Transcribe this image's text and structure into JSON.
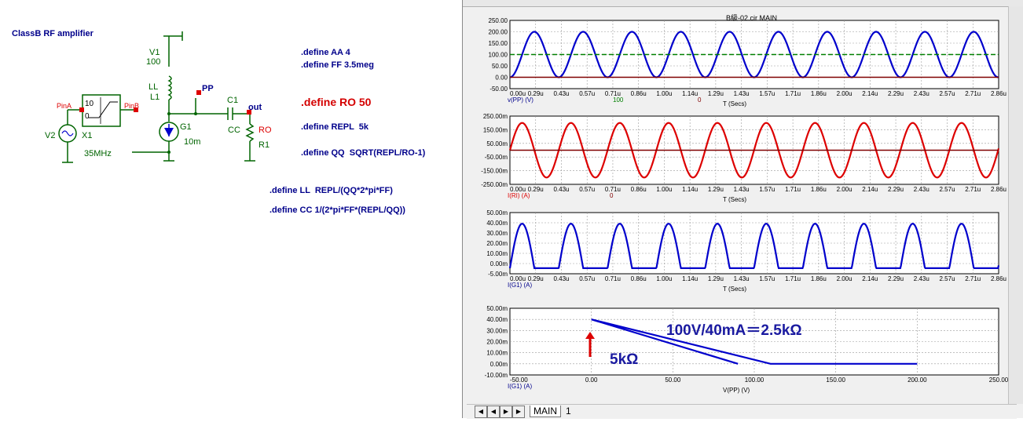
{
  "schematic": {
    "title": "ClassB  RF amplifier",
    "labels": {
      "v1": "V1",
      "v1_value": "100",
      "ll": "LL",
      "l1": "L1",
      "pp": "PP",
      "c1": "C1",
      "cc": "CC",
      "out": "out",
      "ro": "RO",
      "r1": "R1",
      "g1": "G1",
      "g1_value": "10m",
      "pina": "PinA",
      "pinb": "PinB",
      "x1": "X1",
      "v2": "V2",
      "freq": "35MHz",
      "x1_box_top": "10",
      "x1_box_bot": "0"
    },
    "defines": [
      ".define AA 4",
      ".define FF 3.5meg",
      ".define RO 50",
      ".define REPL  5k",
      ".define QQ  SQRT(REPL/RO-1)",
      ".define LL  REPL/(QQ*2*pi*FF)",
      ".define CC 1/(2*pi*FF*(REPL/QQ))"
    ]
  },
  "plot_window": {
    "title": "B級-02.cir MAIN",
    "tabs": [
      "MAIN",
      "1"
    ]
  },
  "colors": {
    "blue": "#0000cc",
    "red": "#dd0000",
    "darkred": "#800000",
    "green": "#008000",
    "navy": "#00008b"
  },
  "chart_data": [
    {
      "type": "line",
      "title": "B級-02.cir MAIN",
      "xlabel": "T (Secs)",
      "trace_label": "v(PP) (V)",
      "cursor_values": [
        "100",
        "0"
      ],
      "x_ticks": [
        "0.00u",
        "0.29u",
        "0.43u",
        "0.57u",
        "0.71u",
        "0.86u",
        "1.00u",
        "1.14u",
        "1.29u",
        "1.43u",
        "1.57u",
        "1.71u",
        "1.86u",
        "2.00u",
        "2.14u",
        "2.29u",
        "2.43u",
        "2.57u",
        "2.71u",
        "2.86u"
      ],
      "y_ticks": [
        "250.00",
        "200.00",
        "150.00",
        "100.00",
        "50.00",
        "0.00",
        "-50.00"
      ],
      "xlim": [
        0,
        2.86
      ],
      "ylim": [
        -50,
        250
      ],
      "series": [
        {
          "color": "blue",
          "kind": "sine",
          "offset": 100,
          "amplitude": 100,
          "freq_mhz": 3.5,
          "phase": "cos-neg"
        },
        {
          "color": "green",
          "kind": "const",
          "value": 100,
          "dashed": true
        },
        {
          "color": "darkred",
          "kind": "const",
          "value": 0
        }
      ]
    },
    {
      "type": "line",
      "xlabel": "T (Secs)",
      "trace_label": "I(RI) (A)",
      "cursor_values": [
        "0"
      ],
      "x_ticks": [
        "0.00u",
        "0.29u",
        "0.43u",
        "0.57u",
        "0.71u",
        "0.86u",
        "1.00u",
        "1.14u",
        "1.29u",
        "1.43u",
        "1.57u",
        "1.71u",
        "1.86u",
        "2.00u",
        "2.14u",
        "2.29u",
        "2.43u",
        "2.57u",
        "2.71u",
        "2.86u"
      ],
      "y_ticks": [
        "250.00m",
        "150.00m",
        "50.00m",
        "-50.00m",
        "-150.00m",
        "-250.00m"
      ],
      "xlim": [
        0,
        2.86
      ],
      "ylim": [
        -250,
        250
      ],
      "series": [
        {
          "color": "red",
          "kind": "sine",
          "offset": 0,
          "amplitude": 200,
          "freq_mhz": 3.5,
          "phase": "sin"
        },
        {
          "color": "darkred",
          "kind": "const",
          "value": 0
        }
      ]
    },
    {
      "type": "line",
      "xlabel": "T (Secs)",
      "trace_label": "I(G1) (A)",
      "x_ticks": [
        "0.00u",
        "0.29u",
        "0.43u",
        "0.57u",
        "0.71u",
        "0.86u",
        "1.00u",
        "1.14u",
        "1.29u",
        "1.43u",
        "1.57u",
        "1.71u",
        "1.86u",
        "2.00u",
        "2.14u",
        "2.29u",
        "2.43u",
        "2.57u",
        "2.71u",
        "2.86u"
      ],
      "y_ticks": [
        "50.00m",
        "40.00m",
        "30.00m",
        "20.00m",
        "10.00m",
        "0.00m",
        "-5.00m"
      ],
      "xlim": [
        0,
        2.86
      ],
      "ylim": [
        -5,
        50
      ],
      "series": [
        {
          "color": "blue",
          "kind": "halfwave",
          "amplitude": 40,
          "freq_mhz": 3.5,
          "phase": "sin"
        }
      ]
    },
    {
      "type": "line",
      "xlabel": "V(PP) (V)",
      "trace_label": "I(G1) (A)",
      "x_ticks": [
        "-50.00",
        "0.00",
        "50.00",
        "100.00",
        "150.00",
        "200.00",
        "250.00"
      ],
      "y_ticks": [
        "50.00m",
        "40.00m",
        "30.00m",
        "20.00m",
        "10.00m",
        "0.00m",
        "-10.00m"
      ],
      "xlim": [
        -50,
        250
      ],
      "ylim": [
        -10,
        50
      ],
      "series": [
        {
          "color": "blue",
          "kind": "polyline",
          "points": [
            [
              200,
              0
            ],
            [
              110,
              0
            ],
            [
              0,
              40
            ],
            [
              90,
              0
            ]
          ]
        }
      ],
      "annotations": {
        "slope": "100V/40mA＝2.5kΩ",
        "load": "5kΩ"
      }
    }
  ]
}
